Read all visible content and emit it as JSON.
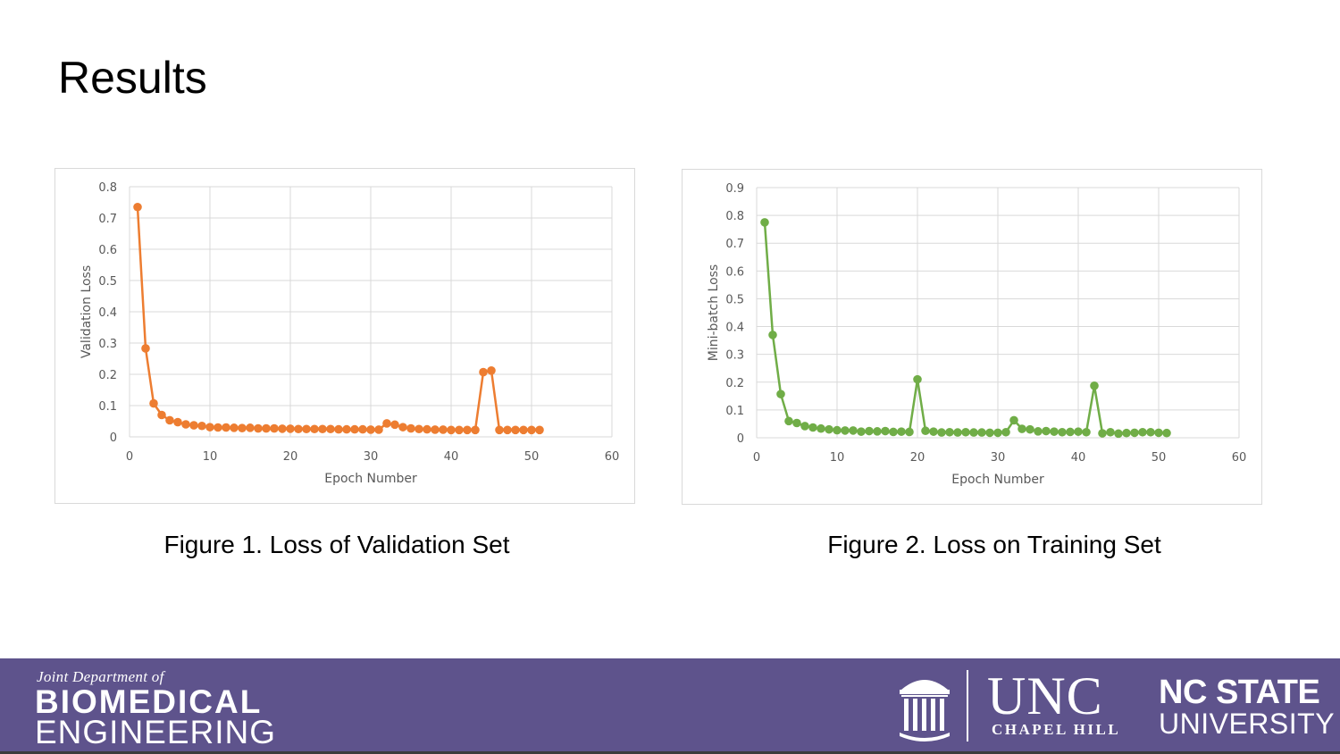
{
  "slide": {
    "title": "Results",
    "captions": [
      "Figure 1. Loss of Validation Set",
      "Figure 2. Loss on Training Set"
    ]
  },
  "footer": {
    "dept_prefix": "Joint Department of",
    "dept_line1": "BIOMEDICAL",
    "dept_line2": "ENGINEERING",
    "unc_name": "UNC",
    "unc_sub": "CHAPEL HILL",
    "ncstate_name": "NC STATE",
    "ncstate_sub": "UNIVERSITY",
    "background_color": "#5e538c",
    "icons": [
      "unc-old-well-icon"
    ]
  },
  "chart_data": [
    {
      "type": "line",
      "markers": true,
      "color": "#ed7d31",
      "title": "",
      "xlabel": "Epoch Number",
      "ylabel": "Validation Loss",
      "xlim": [
        0,
        60
      ],
      "ylim": [
        0,
        0.8
      ],
      "xticks": [
        0,
        10,
        20,
        30,
        40,
        50,
        60
      ],
      "yticks": [
        "0",
        "0.1",
        "0.2",
        "0.3",
        "0.4",
        "0.5",
        "0.6",
        "0.7",
        "0.8"
      ],
      "grid": true,
      "x": [
        1,
        2,
        3,
        4,
        5,
        6,
        7,
        8,
        9,
        10,
        11,
        12,
        13,
        14,
        15,
        16,
        17,
        18,
        19,
        20,
        21,
        22,
        23,
        24,
        25,
        26,
        27,
        28,
        29,
        30,
        31,
        32,
        33,
        34,
        35,
        36,
        37,
        38,
        39,
        40,
        41,
        42,
        43,
        44,
        45,
        46,
        47,
        48,
        49,
        50,
        51
      ],
      "y": [
        0.735,
        0.283,
        0.107,
        0.07,
        0.053,
        0.047,
        0.04,
        0.037,
        0.035,
        0.031,
        0.03,
        0.03,
        0.029,
        0.028,
        0.029,
        0.027,
        0.027,
        0.027,
        0.026,
        0.026,
        0.025,
        0.025,
        0.025,
        0.025,
        0.025,
        0.024,
        0.024,
        0.024,
        0.024,
        0.023,
        0.023,
        0.043,
        0.039,
        0.031,
        0.027,
        0.025,
        0.024,
        0.023,
        0.023,
        0.022,
        0.022,
        0.022,
        0.022,
        0.207,
        0.212,
        0.022,
        0.022,
        0.022,
        0.022,
        0.022,
        0.022
      ]
    },
    {
      "type": "line",
      "markers": true,
      "color": "#70ad47",
      "title": "",
      "xlabel": "Epoch Number",
      "ylabel": "Mini-batch Loss",
      "xlim": [
        0,
        60
      ],
      "ylim": [
        0,
        0.9
      ],
      "xticks": [
        0,
        10,
        20,
        30,
        40,
        50,
        60
      ],
      "yticks": [
        "0",
        "0.1",
        "0.2",
        "0.3",
        "0.4",
        "0.5",
        "0.6",
        "0.7",
        "0.8",
        "0.9"
      ],
      "grid": true,
      "x": [
        1,
        2,
        3,
        4,
        5,
        6,
        7,
        8,
        9,
        10,
        11,
        12,
        13,
        14,
        15,
        16,
        17,
        18,
        19,
        20,
        21,
        22,
        23,
        24,
        25,
        26,
        27,
        28,
        29,
        30,
        31,
        32,
        33,
        34,
        35,
        36,
        37,
        38,
        39,
        40,
        41,
        42,
        43,
        44,
        45,
        46,
        47,
        48,
        49,
        50,
        51
      ],
      "y": [
        0.775,
        0.37,
        0.157,
        0.06,
        0.053,
        0.042,
        0.037,
        0.033,
        0.03,
        0.027,
        0.026,
        0.026,
        0.022,
        0.024,
        0.023,
        0.024,
        0.021,
        0.022,
        0.021,
        0.21,
        0.025,
        0.022,
        0.019,
        0.02,
        0.019,
        0.02,
        0.019,
        0.019,
        0.018,
        0.018,
        0.02,
        0.063,
        0.032,
        0.03,
        0.023,
        0.024,
        0.022,
        0.02,
        0.021,
        0.022,
        0.02,
        0.187,
        0.016,
        0.02,
        0.015,
        0.017,
        0.018,
        0.02,
        0.02,
        0.018,
        0.017
      ]
    }
  ]
}
